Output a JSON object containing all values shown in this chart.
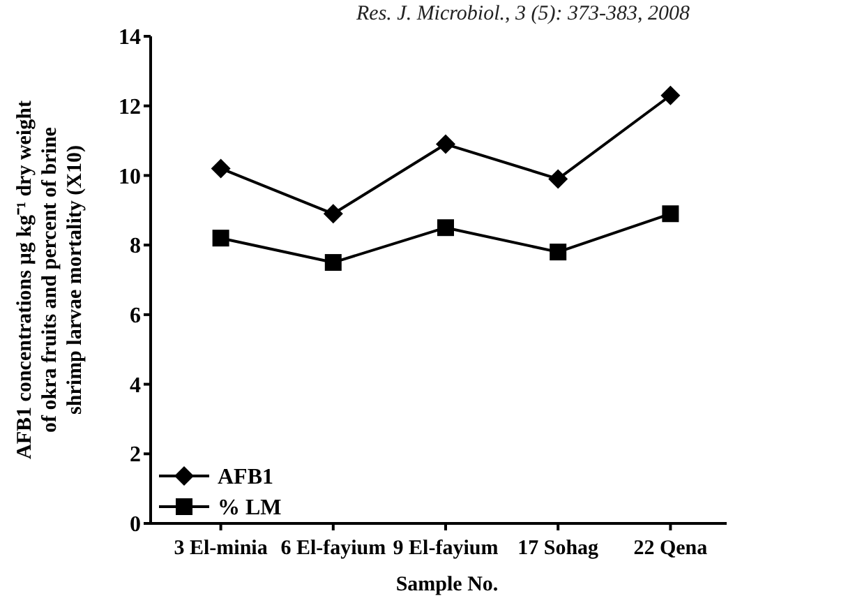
{
  "chart_data": {
    "type": "line",
    "xlabel": "Sample No.",
    "ylabel": "AFB1 concentrations µg kg⁻¹ dry weight of okra fruits and percent of brine shrimp larvae mortality (X10)",
    "annotations": [
      "Res. J. Microbiol., 3 (5): 373-383, 2008"
    ],
    "categories": [
      "3 El-minia",
      "6 El-fayium",
      "9 El-fayium",
      "17 Sohag",
      "22 Qena"
    ],
    "series": [
      {
        "name": "AFB1",
        "color": "#000000",
        "marker": "diamond",
        "values": [
          10.2,
          8.9,
          10.9,
          9.9,
          12.3
        ]
      },
      {
        "name": "% LM",
        "color": "#000000",
        "marker": "square",
        "values": [
          8.2,
          7.5,
          8.5,
          7.8,
          8.9
        ]
      }
    ],
    "ylim": [
      0,
      14
    ],
    "yticks": [
      0,
      2,
      4,
      6,
      8,
      10,
      12,
      14
    ],
    "grid": false,
    "legend": "bottom left",
    "line_style": "solid"
  }
}
